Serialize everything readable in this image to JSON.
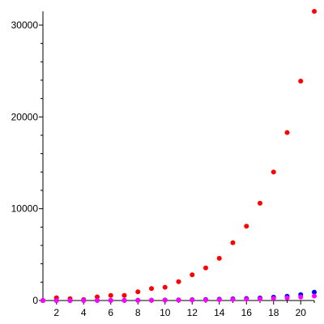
{
  "chart_data": {
    "type": "scatter",
    "xlim": [
      1,
      21
    ],
    "ylim": [
      0,
      31500
    ],
    "xticks": [
      2,
      4,
      6,
      8,
      10,
      12,
      14,
      16,
      18,
      20
    ],
    "yticks": [
      0,
      10000,
      20000,
      30000
    ],
    "grid": false,
    "title": "",
    "xlabel": "",
    "ylabel": "",
    "series": [
      {
        "color": "#ff0000",
        "points": [
          [
            1,
            0
          ],
          [
            2,
            300
          ],
          [
            3,
            200
          ],
          [
            4,
            100
          ],
          [
            5,
            400
          ],
          [
            6,
            550
          ],
          [
            7,
            550
          ],
          [
            8,
            950
          ],
          [
            9,
            1300
          ],
          [
            10,
            1450
          ],
          [
            11,
            2050
          ],
          [
            12,
            2800
          ],
          [
            13,
            3550
          ],
          [
            14,
            4600
          ],
          [
            15,
            6300
          ],
          [
            16,
            8100
          ],
          [
            17,
            10600
          ],
          [
            18,
            14000
          ],
          [
            19,
            18300
          ],
          [
            20,
            23900
          ],
          [
            21,
            31500
          ]
        ]
      },
      {
        "color": "#0000ff",
        "points": [
          [
            1,
            0
          ],
          [
            2,
            2
          ],
          [
            3,
            4
          ],
          [
            4,
            6
          ],
          [
            5,
            10
          ],
          [
            6,
            15
          ],
          [
            7,
            20
          ],
          [
            8,
            28
          ],
          [
            9,
            38
          ],
          [
            10,
            50
          ],
          [
            11,
            65
          ],
          [
            12,
            85
          ],
          [
            13,
            110
          ],
          [
            14,
            140
          ],
          [
            15,
            175
          ],
          [
            16,
            220
          ],
          [
            17,
            280
          ],
          [
            18,
            360
          ],
          [
            19,
            460
          ],
          [
            20,
            640
          ],
          [
            21,
            900
          ]
        ]
      },
      {
        "color": "#ff00ff",
        "points": [
          [
            1,
            0
          ],
          [
            2,
            1
          ],
          [
            3,
            2
          ],
          [
            4,
            4
          ],
          [
            5,
            6
          ],
          [
            6,
            9
          ],
          [
            7,
            12
          ],
          [
            8,
            16
          ],
          [
            9,
            22
          ],
          [
            10,
            30
          ],
          [
            11,
            40
          ],
          [
            12,
            55
          ],
          [
            13,
            70
          ],
          [
            14,
            90
          ],
          [
            15,
            115
          ],
          [
            16,
            145
          ],
          [
            17,
            185
          ],
          [
            18,
            235
          ],
          [
            19,
            300
          ],
          [
            20,
            380
          ],
          [
            21,
            480
          ]
        ]
      }
    ]
  }
}
